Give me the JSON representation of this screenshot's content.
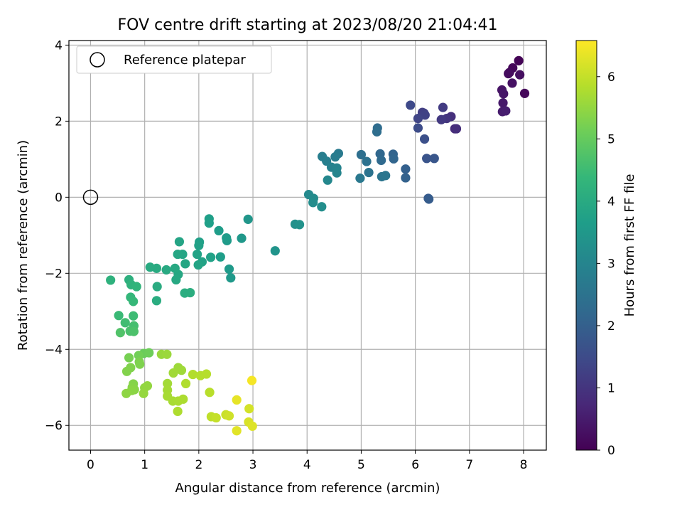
{
  "chart_data": {
    "type": "scatter",
    "title": "FOV centre drift starting at 2023/08/20 21:04:41",
    "xlabel": "Angular distance from reference (arcmin)",
    "ylabel": "Rotation from reference (arcmin)",
    "xlim": [
      -0.4,
      8.42
    ],
    "ylim": [
      -6.65,
      4.12
    ],
    "xticks": [
      0,
      1,
      2,
      3,
      4,
      5,
      6,
      7,
      8
    ],
    "yticks": [
      -6,
      -4,
      -2,
      0,
      2,
      4
    ],
    "grid": true,
    "legend": {
      "location": "upper-left",
      "entries": [
        "Reference platepar"
      ]
    },
    "reference": {
      "x": 0,
      "y": 0,
      "label": "Reference platepar"
    },
    "colorbar": {
      "label": "Hours from first FF file",
      "range": [
        0,
        6.58
      ],
      "ticks": [
        0,
        1,
        2,
        3,
        4,
        5,
        6
      ],
      "colormap": "viridis"
    },
    "colormap_stops": [
      "#440154",
      "#482878",
      "#3e4a89",
      "#31688e",
      "#26828e",
      "#1f9e89",
      "#35b779",
      "#6ece58",
      "#b5de2b",
      "#fde725"
    ],
    "marker_size_units": "points",
    "points": [
      [
        7.91,
        3.59,
        0.05
      ],
      [
        7.8,
        3.4,
        0.1
      ],
      [
        7.74,
        3.28,
        0.15
      ],
      [
        7.72,
        3.25,
        0.2
      ],
      [
        7.93,
        3.22,
        0.25
      ],
      [
        7.79,
        3.0,
        0.3
      ],
      [
        8.02,
        2.73,
        0.12
      ],
      [
        7.6,
        2.82,
        0.35
      ],
      [
        7.63,
        2.72,
        0.4
      ],
      [
        7.62,
        2.48,
        0.45
      ],
      [
        7.61,
        2.25,
        0.5
      ],
      [
        7.67,
        2.27,
        0.55
      ],
      [
        6.73,
        1.8,
        0.8
      ],
      [
        6.76,
        1.8,
        0.85
      ],
      [
        6.66,
        2.12,
        0.9
      ],
      [
        6.58,
        2.07,
        1.0
      ],
      [
        6.48,
        2.04,
        1.1
      ],
      [
        6.51,
        2.36,
        1.15
      ],
      [
        6.13,
        2.23,
        1.2
      ],
      [
        6.16,
        2.21,
        1.25
      ],
      [
        6.18,
        2.16,
        1.3
      ],
      [
        6.05,
        2.07,
        1.35
      ],
      [
        5.91,
        2.42,
        1.45
      ],
      [
        6.05,
        1.82,
        1.5
      ],
      [
        6.17,
        1.53,
        1.6
      ],
      [
        6.21,
        1.02,
        1.7
      ],
      [
        6.35,
        1.02,
        1.75
      ],
      [
        6.24,
        -0.03,
        1.85
      ],
      [
        6.25,
        -0.05,
        1.9
      ],
      [
        5.82,
        0.74,
        2.0
      ],
      [
        5.82,
        0.51,
        2.05
      ],
      [
        5.59,
        1.13,
        2.1
      ],
      [
        5.6,
        1.01,
        2.15
      ],
      [
        5.35,
        1.14,
        2.2
      ],
      [
        5.37,
        0.97,
        2.25
      ],
      [
        5.3,
        1.82,
        2.3
      ],
      [
        5.29,
        1.72,
        2.35
      ],
      [
        5.0,
        1.12,
        2.4
      ],
      [
        5.1,
        0.94,
        2.45
      ],
      [
        5.14,
        0.65,
        2.5
      ],
      [
        5.38,
        0.54,
        2.55
      ],
      [
        5.45,
        0.57,
        2.6
      ],
      [
        4.98,
        0.5,
        2.65
      ],
      [
        4.58,
        1.15,
        2.7
      ],
      [
        4.52,
        1.06,
        2.75
      ],
      [
        4.28,
        1.07,
        2.8
      ],
      [
        4.36,
        0.95,
        2.85
      ],
      [
        4.45,
        0.79,
        2.9
      ],
      [
        4.55,
        0.77,
        2.95
      ],
      [
        4.55,
        0.64,
        3.0
      ],
      [
        4.38,
        0.45,
        3.05
      ],
      [
        4.03,
        0.07,
        3.1
      ],
      [
        4.12,
        -0.03,
        3.15
      ],
      [
        4.11,
        -0.14,
        3.2
      ],
      [
        4.27,
        -0.25,
        3.25
      ],
      [
        3.78,
        -0.71,
        3.3
      ],
      [
        3.86,
        -0.72,
        3.35
      ],
      [
        3.41,
        -1.41,
        3.4
      ],
      [
        2.91,
        -0.58,
        3.45
      ],
      [
        2.79,
        -1.08,
        3.5
      ],
      [
        2.59,
        -2.12,
        3.52
      ],
      [
        2.56,
        -1.89,
        3.55
      ],
      [
        2.52,
        -1.14,
        3.58
      ],
      [
        2.51,
        -1.07,
        3.6
      ],
      [
        2.37,
        -0.88,
        3.62
      ],
      [
        2.4,
        -1.57,
        3.65
      ],
      [
        2.19,
        -0.57,
        3.68
      ],
      [
        2.19,
        -0.68,
        3.7
      ],
      [
        2.01,
        -1.18,
        3.72
      ],
      [
        2.0,
        -1.27,
        3.74
      ],
      [
        2.22,
        -1.58,
        3.76
      ],
      [
        2.06,
        -1.7,
        3.78
      ],
      [
        1.97,
        -1.5,
        3.8
      ],
      [
        1.99,
        -1.78,
        3.82
      ],
      [
        1.64,
        -1.17,
        3.84
      ],
      [
        1.7,
        -1.5,
        3.86
      ],
      [
        1.61,
        -1.5,
        3.88
      ],
      [
        1.75,
        -1.75,
        3.9
      ],
      [
        1.62,
        -2.03,
        3.92
      ],
      [
        1.58,
        -2.17,
        3.94
      ],
      [
        1.56,
        -1.87,
        3.96
      ],
      [
        1.4,
        -1.91,
        3.98
      ],
      [
        1.22,
        -1.87,
        4.0
      ],
      [
        1.1,
        -1.84,
        4.02
      ],
      [
        1.23,
        -2.35,
        4.04
      ],
      [
        1.22,
        -2.72,
        4.06
      ],
      [
        1.74,
        -2.52,
        4.08
      ],
      [
        1.84,
        -2.51,
        4.1
      ],
      [
        0.71,
        -2.17,
        4.15
      ],
      [
        0.37,
        -2.18,
        4.2
      ],
      [
        0.75,
        -2.3,
        4.25
      ],
      [
        0.85,
        -2.35,
        4.3
      ],
      [
        0.74,
        -2.63,
        4.35
      ],
      [
        0.79,
        -2.74,
        4.4
      ],
      [
        0.52,
        -3.11,
        4.45
      ],
      [
        0.79,
        -3.12,
        4.5
      ],
      [
        0.64,
        -3.3,
        4.55
      ],
      [
        0.8,
        -3.38,
        4.6
      ],
      [
        0.73,
        -3.52,
        4.65
      ],
      [
        0.8,
        -3.53,
        4.7
      ],
      [
        0.55,
        -3.56,
        4.75
      ],
      [
        0.98,
        -4.11,
        5.05
      ],
      [
        1.08,
        -4.09,
        5.1
      ],
      [
        0.89,
        -4.16,
        5.15
      ],
      [
        0.71,
        -4.22,
        5.2
      ],
      [
        0.9,
        -4.33,
        5.25
      ],
      [
        0.91,
        -4.39,
        5.28
      ],
      [
        0.74,
        -4.48,
        5.3
      ],
      [
        0.67,
        -4.58,
        5.32
      ],
      [
        0.79,
        -4.91,
        5.35
      ],
      [
        0.77,
        -5.0,
        5.38
      ],
      [
        0.81,
        -5.06,
        5.4
      ],
      [
        0.76,
        -5.08,
        5.42
      ],
      [
        0.66,
        -5.16,
        5.45
      ],
      [
        1.0,
        -5.01,
        5.48
      ],
      [
        1.05,
        -4.96,
        5.5
      ],
      [
        0.98,
        -5.16,
        5.52
      ],
      [
        1.31,
        -4.13,
        5.55
      ],
      [
        1.41,
        -4.13,
        5.58
      ],
      [
        1.62,
        -4.48,
        5.6
      ],
      [
        1.68,
        -4.55,
        5.62
      ],
      [
        1.53,
        -4.62,
        5.64
      ],
      [
        1.42,
        -4.9,
        5.66
      ],
      [
        1.42,
        -5.07,
        5.68
      ],
      [
        1.42,
        -5.23,
        5.7
      ],
      [
        1.52,
        -5.36,
        5.72
      ],
      [
        1.62,
        -5.36,
        5.74
      ],
      [
        1.71,
        -5.31,
        5.76
      ],
      [
        1.61,
        -5.63,
        5.78
      ],
      [
        1.76,
        -4.9,
        5.8
      ],
      [
        1.89,
        -4.66,
        5.82
      ],
      [
        2.03,
        -4.69,
        5.84
      ],
      [
        2.14,
        -4.65,
        5.86
      ],
      [
        2.2,
        -5.13,
        5.88
      ],
      [
        2.23,
        -5.77,
        5.95
      ],
      [
        2.32,
        -5.8,
        6.0
      ],
      [
        2.5,
        -5.72,
        6.05
      ],
      [
        2.56,
        -5.75,
        6.1
      ],
      [
        2.93,
        -5.56,
        6.15
      ],
      [
        2.92,
        -5.91,
        6.2
      ],
      [
        2.99,
        -6.02,
        6.25
      ],
      [
        2.7,
        -6.14,
        6.3
      ],
      [
        2.7,
        -5.33,
        6.35
      ],
      [
        2.98,
        -4.82,
        6.5
      ]
    ]
  }
}
